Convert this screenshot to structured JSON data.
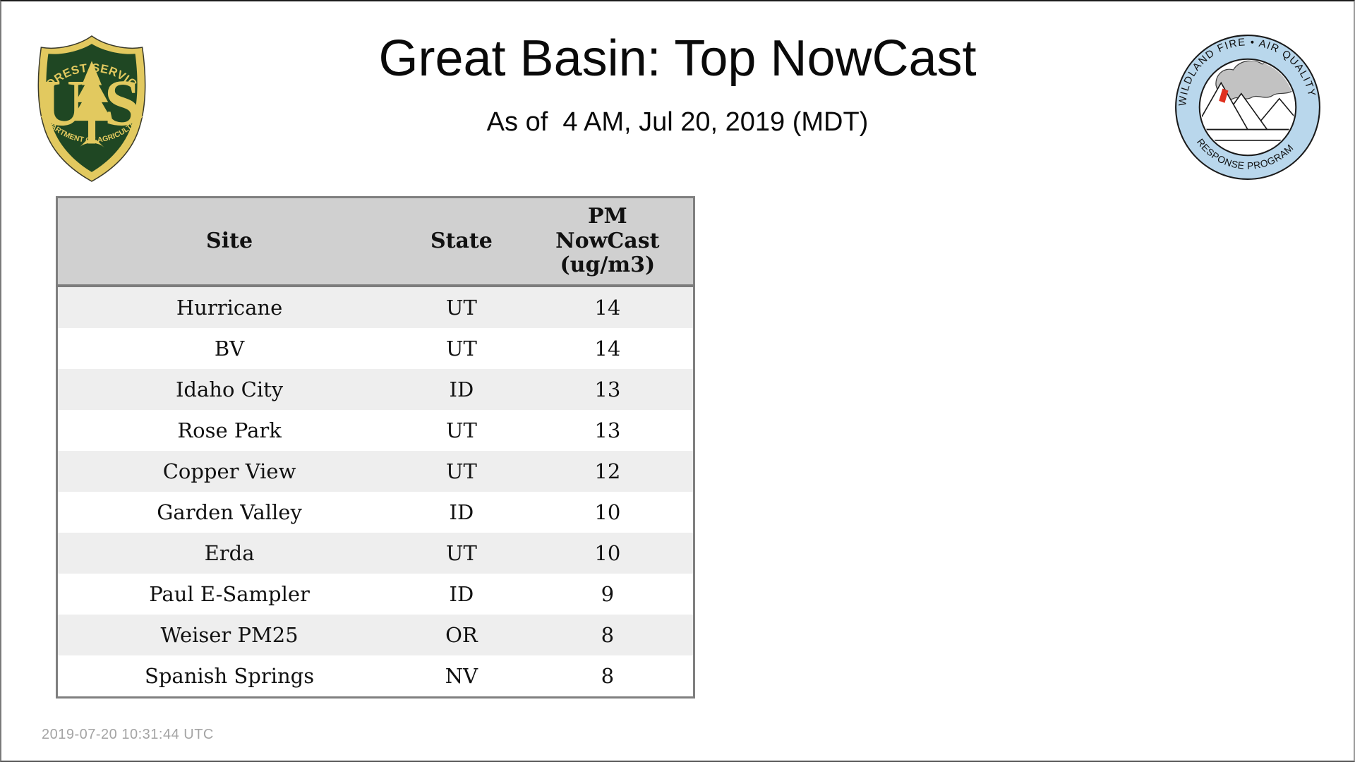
{
  "page": {
    "title": "Great Basin: Top NowCast",
    "subtitle": "As of  4 AM, Jul 20, 2019 (MDT)",
    "footer_timestamp": "2019-07-20 10:31:44 UTC"
  },
  "logos": {
    "forest_service": {
      "arc_top": "FOREST SERVICE",
      "letter_u": "U",
      "letter_s": "S",
      "arc_bottom": "DEPARTMENT OF AGRICULTURE",
      "colors": {
        "green": "#1f4723",
        "gold": "#e2c95f"
      }
    },
    "wfaqrp": {
      "arc_top": "WILDLAND FIRE • AIR QUALITY",
      "arc_bottom": "RESPONSE PROGRAM",
      "colors": {
        "ring_blue": "#b9d7ec",
        "smoke_gray": "#c2c2c2",
        "flame_red": "#e0301e"
      }
    }
  },
  "table": {
    "columns": [
      {
        "key": "site",
        "label": "Site"
      },
      {
        "key": "state",
        "label": "State"
      },
      {
        "key": "pm_nowcast",
        "label": "PM\nNowCast\n(ug/m3)"
      }
    ],
    "rows": [
      {
        "site": "Hurricane",
        "state": "UT",
        "pm_nowcast": "14"
      },
      {
        "site": "BV",
        "state": "UT",
        "pm_nowcast": "14"
      },
      {
        "site": "Idaho City",
        "state": "ID",
        "pm_nowcast": "13"
      },
      {
        "site": "Rose Park",
        "state": "UT",
        "pm_nowcast": "13"
      },
      {
        "site": "Copper View",
        "state": "UT",
        "pm_nowcast": "12"
      },
      {
        "site": "Garden Valley",
        "state": "ID",
        "pm_nowcast": "10"
      },
      {
        "site": "Erda",
        "state": "UT",
        "pm_nowcast": "10"
      },
      {
        "site": "Paul E-Sampler",
        "state": "ID",
        "pm_nowcast": "9"
      },
      {
        "site": "Weiser PM25",
        "state": "OR",
        "pm_nowcast": "8"
      },
      {
        "site": "Spanish Springs",
        "state": "NV",
        "pm_nowcast": "8"
      }
    ],
    "style": {
      "header_bg": "#d0d0d0",
      "alt_row_bg": "#eeeeee",
      "border": "#7f7f7f"
    }
  }
}
